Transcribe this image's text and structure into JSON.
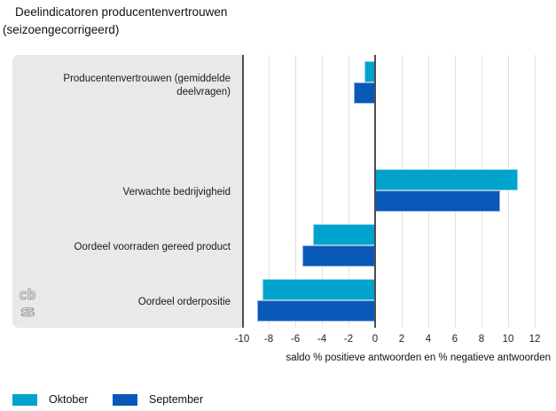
{
  "title": {
    "line1": "Deelindicatoren producentenvertrouwen",
    "line2": "(seizoengecorrigeerd)"
  },
  "chart_data": {
    "type": "bar",
    "orientation": "horizontal",
    "categories": [
      "Producentenvertrouwen (gemiddelde deelvragen)",
      "Verwachte bedrijvigheid",
      "Oordeel voorraden gereed product",
      "Oordeel orderpositie"
    ],
    "series": [
      {
        "name": "Oktober",
        "color": "#00a3cc",
        "values": [
          -0.8,
          10.7,
          -4.7,
          -8.5
        ]
      },
      {
        "name": "September",
        "color": "#0a58b8",
        "values": [
          -1.6,
          9.4,
          -5.5,
          -8.9
        ]
      }
    ],
    "xlabel": "saldo % positieve antwoorden en % negatieve antwoorden",
    "xlim": [
      -10,
      12
    ],
    "xticks": [
      -10,
      -8,
      -6,
      -4,
      -2,
      0,
      2,
      4,
      6,
      8,
      10,
      12
    ],
    "grid": true,
    "zero_line": true,
    "legend_position": "bottom"
  },
  "logo": {
    "top": "cb",
    "bottom": "s"
  },
  "colors": {
    "panel_bg": "#e9e9e9",
    "plot_bg": "#ffffff",
    "gridline": "#e2e2e2",
    "axis_line": "#4d4d4d",
    "oktober": "#00a3cc",
    "september": "#0a58b8",
    "logo_gray": "#a3a3a3"
  }
}
